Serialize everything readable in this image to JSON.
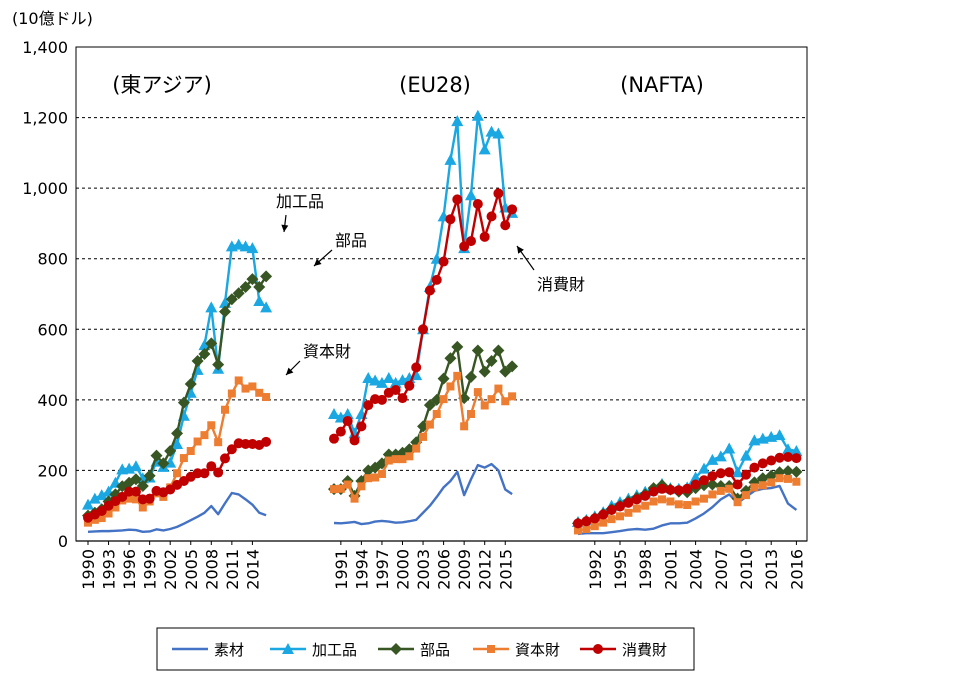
{
  "chart_data": {
    "type": "line",
    "ylabel": "(10億ドル)",
    "ylim": [
      0,
      1400
    ],
    "yticks": [
      0,
      200,
      400,
      600,
      800,
      1000,
      1200,
      1400
    ],
    "ytick_labels": [
      "0",
      "200",
      "400",
      "600",
      "800",
      "1,000",
      "1,200",
      "1,400"
    ],
    "grid": "horizontal dashed",
    "legend_position": "bottom",
    "legend": [
      "素材",
      "加工品",
      "部品",
      "資本財",
      "消費財"
    ],
    "series_colors": [
      "#4472C4",
      "#1AA7E2",
      "#375623",
      "#ED7D31",
      "#C00000"
    ],
    "panels": [
      {
        "title": "(東アジア)",
        "x": [
          1990,
          1991,
          1992,
          1993,
          1994,
          1995,
          1996,
          1997,
          1998,
          1999,
          2000,
          2001,
          2002,
          2003,
          2004,
          2005,
          2006,
          2007,
          2008,
          2009,
          2010,
          2011,
          2012,
          2013,
          2014,
          2015,
          2016
        ],
        "xtick_labels": [
          "1990",
          "1993",
          "1996",
          "1999",
          "2002",
          "2005",
          "2008",
          "2011",
          "2014"
        ],
        "series": [
          {
            "name": "素材",
            "values": [
              26,
              27,
              28,
              28,
              29,
              30,
              32,
              31,
              26,
              27,
              33,
              30,
              34,
              40,
              49,
              59,
              69,
              80,
              99,
              76,
              107,
              136,
              132,
              118,
              103,
              80,
              73
            ]
          },
          {
            "name": "加工品",
            "values": [
              103,
              120,
              130,
              140,
              165,
              203,
              205,
              212,
              178,
              180,
              225,
              210,
              222,
              275,
              355,
              420,
              485,
              555,
              662,
              488,
              675,
              835,
              840,
              835,
              830,
              680,
              662
            ]
          },
          {
            "name": "部品",
            "values": [
              72,
              80,
              90,
              112,
              132,
              155,
              165,
              175,
              156,
              185,
              242,
              220,
              255,
              305,
              392,
              445,
              510,
              530,
              560,
              500,
              650,
              685,
              702,
              720,
              742,
              720,
              750
            ]
          },
          {
            "name": "資本財",
            "values": [
              52,
              60,
              65,
              78,
              95,
              115,
              120,
              118,
              95,
              112,
              135,
              125,
              152,
              192,
              235,
              255,
              282,
              300,
              328,
              280,
              372,
              418,
              455,
              432,
              438,
              420,
              408
            ]
          },
          {
            "name": "消費財",
            "values": [
              66,
              75,
              85,
              100,
              113,
              125,
              140,
              140,
              118,
              120,
              142,
              138,
              146,
              159,
              170,
              182,
              192,
              192,
              212,
              194,
              234,
              260,
              277,
              275,
              275,
              272,
              281
            ]
          }
        ]
      },
      {
        "title": "(EU28)",
        "x": [
          1990,
          1991,
          1992,
          1993,
          1994,
          1995,
          1996,
          1997,
          1998,
          1999,
          2000,
          2001,
          2002,
          2003,
          2004,
          2005,
          2006,
          2007,
          2008,
          2009,
          2010,
          2011,
          2012,
          2013,
          2014,
          2015,
          2016
        ],
        "xtick_labels": [
          "1991",
          "1994",
          "1997",
          "2000",
          "2003",
          "2006",
          "2009",
          "2012",
          "2015"
        ],
        "series": [
          {
            "name": "素材",
            "values": [
              51,
              50,
              52,
              54,
              48,
              50,
              55,
              57,
              55,
              52,
              53,
              56,
              60,
              80,
              100,
              125,
              152,
              170,
              196,
              130,
              175,
              215,
              208,
              218,
              200,
              146,
              133
            ]
          },
          {
            "name": "加工品",
            "values": [
              360,
              350,
              360,
              305,
              360,
              462,
              455,
              448,
              462,
              448,
              456,
              462,
              470,
              600,
              720,
              800,
              920,
              1080,
              1190,
              830,
              980,
              1205,
              1110,
              1160,
              1155,
              945,
              930
            ]
          },
          {
            "name": "部品",
            "values": [
              147,
              147,
              170,
              128,
              170,
              200,
              208,
              220,
              245,
              245,
              250,
              260,
              280,
              325,
              385,
              400,
              460,
              518,
              550,
              405,
              465,
              540,
              480,
              510,
              540,
              480,
              495
            ]
          },
          {
            "name": "資本財",
            "values": [
              147,
              148,
              160,
              120,
              155,
              178,
              180,
              190,
              228,
              232,
              232,
              240,
              262,
              295,
              330,
              360,
              402,
              438,
              468,
              325,
              360,
              422,
              384,
              402,
              432,
              396,
              410
            ]
          },
          {
            "name": "消費財",
            "values": [
              290,
              310,
              340,
              285,
              325,
              385,
              402,
              400,
              420,
              428,
              405,
              440,
              492,
              600,
              710,
              740,
              792,
              912,
              968,
              835,
              850,
              955,
              862,
              920,
              985,
              895,
              940
            ]
          }
        ]
      },
      {
        "title": "(NAFTA)",
        "x": [
          1990,
          1991,
          1992,
          1993,
          1994,
          1995,
          1996,
          1997,
          1998,
          1999,
          2000,
          2001,
          2002,
          2003,
          2004,
          2005,
          2006,
          2007,
          2008,
          2009,
          2010,
          2011,
          2012,
          2013,
          2014,
          2015,
          2016
        ],
        "xtick_labels": [
          "1992",
          "1995",
          "1998",
          "2001",
          "2004",
          "2007",
          "2010",
          "2013",
          "2016"
        ],
        "series": [
          {
            "name": "素材",
            "values": [
              20,
              22,
              22,
              22,
              25,
              28,
              32,
              34,
              32,
              35,
              44,
              50,
              50,
              52,
              64,
              78,
              96,
              118,
              132,
              108,
              125,
              142,
              148,
              150,
              156,
              106,
              88
            ]
          },
          {
            "name": "加工品",
            "values": [
              54,
              60,
              70,
              82,
              100,
              110,
              120,
              130,
              140,
              150,
              162,
              150,
              148,
              152,
              180,
              205,
              230,
              240,
              262,
              195,
              242,
              285,
              290,
              295,
              300,
              260,
              255
            ]
          },
          {
            "name": "部品",
            "values": [
              50,
              56,
              64,
              76,
              90,
              100,
              112,
              122,
              132,
              150,
              158,
              146,
              140,
              138,
              150,
              158,
              160,
              156,
              156,
              120,
              142,
              166,
              178,
              185,
              195,
              198,
              196
            ]
          },
          {
            "name": "資本財",
            "values": [
              30,
              34,
              42,
              52,
              62,
              70,
              80,
              92,
              100,
              112,
              118,
              112,
              104,
              102,
              112,
              120,
              132,
              142,
              148,
              110,
              130,
              152,
              158,
              166,
              178,
              176,
              168
            ]
          },
          {
            "name": "消費財",
            "values": [
              50,
              56,
              64,
              75,
              88,
              98,
              108,
              118,
              128,
              140,
              148,
              145,
              144,
              148,
              160,
              172,
              184,
              192,
              195,
              160,
              188,
              208,
              220,
              228,
              236,
              238,
              235
            ]
          }
        ]
      }
    ],
    "annotations": [
      "加工品",
      "部品",
      "資本財",
      "消費財"
    ]
  }
}
